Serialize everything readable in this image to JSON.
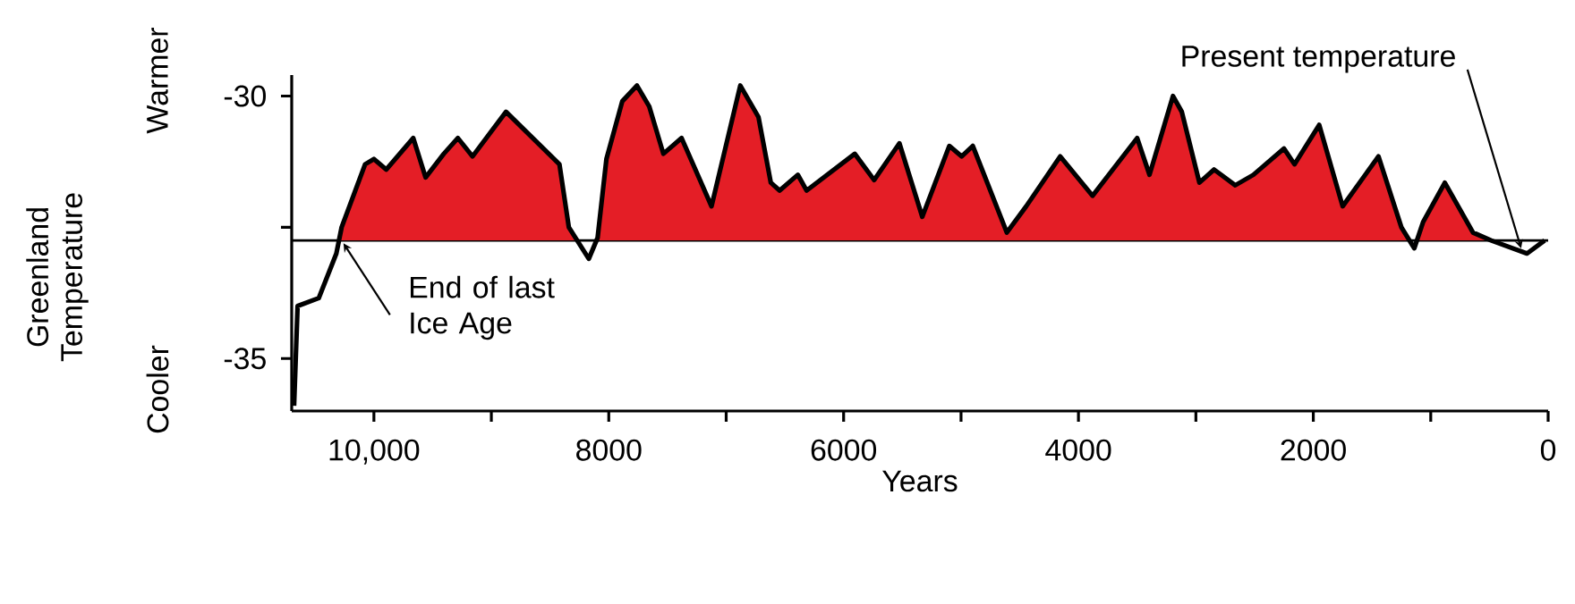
{
  "chart_data": {
    "type": "area",
    "xlabel": "Years",
    "ylabel": "Greenland Temperature",
    "annotations": [
      "Warmer",
      "Cooler",
      {
        "text": "End of last Ice Age",
        "x": 10290,
        "y": -32.67
      },
      {
        "text": "Present temperature",
        "x": 230,
        "y": -32.9
      }
    ],
    "xlim": [
      10700,
      0
    ],
    "xticks": [
      {
        "value": 10000,
        "label": "10,000"
      },
      {
        "value": 9000,
        "label": null
      },
      8000,
      {
        "value": 7000,
        "label": null
      },
      6000,
      {
        "value": 5000,
        "label": null
      },
      4000,
      {
        "value": 3000,
        "label": null
      },
      2000,
      {
        "value": 1000,
        "label": null
      },
      0
    ],
    "ylim": [
      -36,
      -29.6
    ],
    "yticks": [
      -35,
      {
        "value": -32.5,
        "label": null
      },
      -30
    ],
    "ref_lines": [
      {
        "axis": "y",
        "value": -32.75,
        "color": "#000000"
      }
    ],
    "series": [
      {
        "color": "#e41e26",
        "x": [
          10680,
          10650,
          10470,
          10320,
          10275,
          10075,
          10000,
          9895,
          9665,
          9560,
          9405,
          9285,
          9160,
          8875,
          8420,
          8340,
          8170,
          8095,
          8020,
          7885,
          7760,
          7655,
          7535,
          7380,
          7125,
          6880,
          6725,
          6620,
          6545,
          6390,
          6315,
          5905,
          5740,
          5525,
          5330,
          5100,
          4995,
          4900,
          4610,
          4445,
          4155,
          3880,
          3500,
          3395,
          3195,
          3120,
          2970,
          2845,
          2665,
          2510,
          2250,
          2160,
          1950,
          1750,
          1445,
          1250,
          1140,
          1065,
          880,
          640,
          485,
          180,
          30
        ],
        "values": [
          -35.9,
          -34.0,
          -33.85,
          -33.0,
          -32.5,
          -31.3,
          -31.2,
          -31.4,
          -30.8,
          -31.55,
          -31.1,
          -30.8,
          -31.15,
          -30.3,
          -31.3,
          -32.5,
          -33.1,
          -32.7,
          -31.2,
          -30.1,
          -29.8,
          -30.2,
          -31.1,
          -30.8,
          -32.1,
          -29.8,
          -30.4,
          -31.65,
          -31.8,
          -31.5,
          -31.8,
          -31.1,
          -31.6,
          -30.9,
          -32.3,
          -30.95,
          -31.15,
          -30.95,
          -32.6,
          -32.1,
          -31.15,
          -31.9,
          -30.8,
          -31.5,
          -30.0,
          -30.3,
          -31.65,
          -31.4,
          -31.7,
          -31.5,
          -31.0,
          -31.3,
          -30.55,
          -32.1,
          -31.15,
          -32.5,
          -32.9,
          -32.4,
          -31.65,
          -32.6,
          -32.75,
          -33.0,
          -32.75
        ]
      }
    ]
  }
}
